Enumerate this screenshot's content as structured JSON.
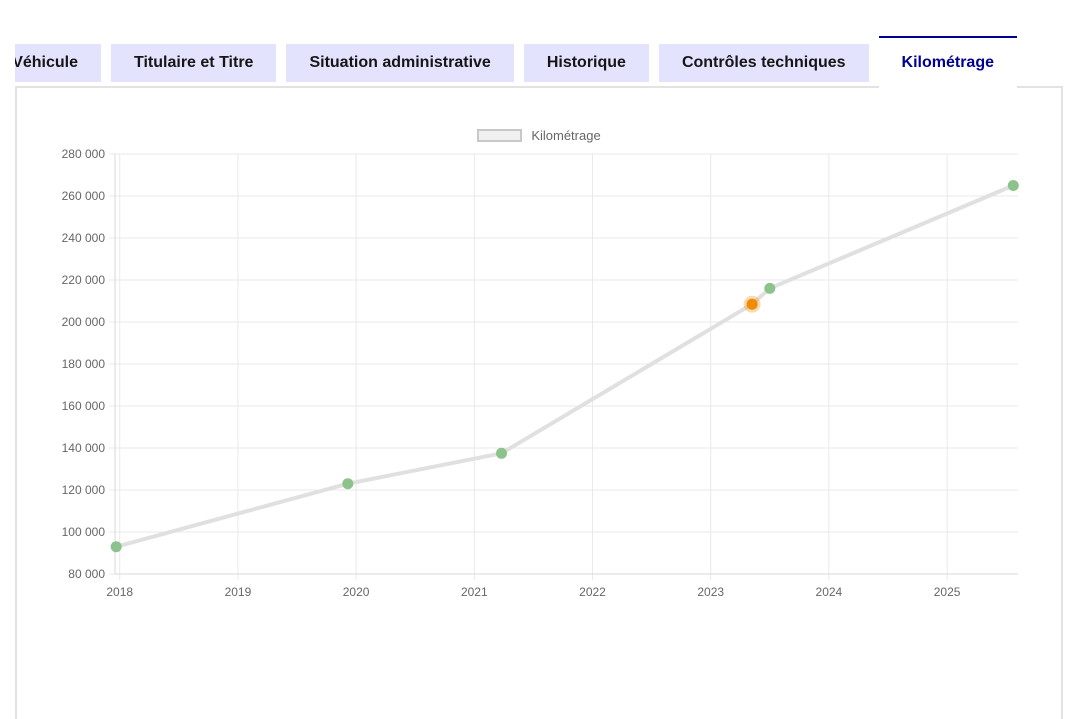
{
  "tabs": {
    "items": [
      {
        "id": "vehicule",
        "label": "Véhicule",
        "active": false
      },
      {
        "id": "titulaire",
        "label": "Titulaire et Titre",
        "active": false
      },
      {
        "id": "situation",
        "label": "Situation administrative",
        "active": false
      },
      {
        "id": "historique",
        "label": "Historique",
        "active": false
      },
      {
        "id": "controles",
        "label": "Contrôles techniques",
        "active": false
      },
      {
        "id": "kilometrage",
        "label": "Kilométrage",
        "active": true
      }
    ]
  },
  "chart_data": {
    "type": "line",
    "title": "",
    "xlabel": "",
    "ylabel": "",
    "legend": {
      "position": "top",
      "entries": [
        {
          "label": "Kilométrage"
        }
      ]
    },
    "xlim": [
      2017.96,
      2025.6
    ],
    "ylim": [
      80000,
      280000
    ],
    "x_ticks": [
      2018,
      2019,
      2020,
      2021,
      2022,
      2023,
      2024,
      2025
    ],
    "y_tick_step": 20000,
    "grid": true,
    "series": [
      {
        "name": "Kilométrage",
        "points": [
          {
            "x": 2017.97,
            "y": 93000,
            "marker": "green"
          },
          {
            "x": 2019.93,
            "y": 123000,
            "marker": "green"
          },
          {
            "x": 2021.23,
            "y": 137500,
            "marker": "green"
          },
          {
            "x": 2023.35,
            "y": 208500,
            "marker": "orange"
          },
          {
            "x": 2023.5,
            "y": 216000,
            "marker": "green"
          },
          {
            "x": 2025.56,
            "y": 265000,
            "marker": "green"
          }
        ]
      }
    ],
    "colors": {
      "line": "#e0e0e0",
      "point_green": "#8cc28c",
      "point_orange": "#ef8b05",
      "point_orange_halo": "rgba(239,139,5,0.32)",
      "grid": "#e9e9e9",
      "axis_border": "#d9d9d9",
      "tick_text": "#666666",
      "legend_swatch_fill": "#f0f0f0",
      "legend_swatch_border": "#c8c8c8"
    }
  },
  "theme": {
    "tab_bg": "#e3e3fd",
    "tab_text": "#161616",
    "tab_active_text": "#000091",
    "tab_active_border": "#000091",
    "panel_border": "#e3e3e3"
  }
}
